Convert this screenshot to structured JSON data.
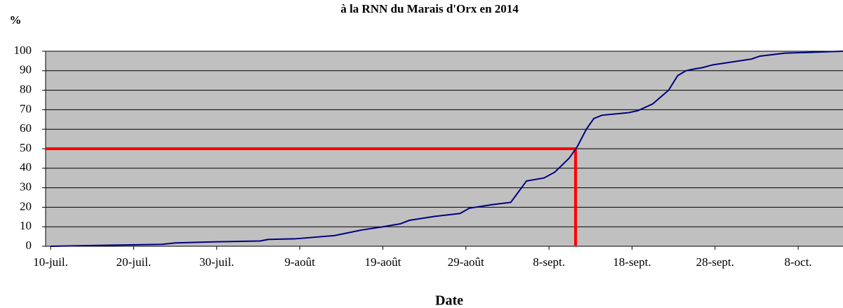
{
  "chart_data": {
    "type": "line",
    "title": "à la RNN du Marais d'Orx en 2014",
    "ylabel": "%",
    "xlabel": "Date",
    "x": [
      0,
      13.4,
      15,
      20,
      25.2,
      26.2,
      29.4,
      34.2,
      37.4,
      40,
      42.1,
      43.2,
      46.2,
      49.3,
      50.4,
      53.1,
      55.4,
      57.3,
      59.4,
      60.7,
      62.4,
      63.4,
      64.5,
      65.4,
      66.4,
      69.6,
      70.7,
      72.5,
      74.4,
      75.5,
      76.5,
      77.6,
      78.4,
      79.7,
      84.4,
      85.4,
      88.4,
      95.4
    ],
    "series": [
      {
        "name": "%",
        "color": "#000080",
        "values": [
          0,
          1,
          1.7,
          2.3,
          2.7,
          3.5,
          3.8,
          5.5,
          8.3,
          10,
          11.5,
          13.3,
          15.3,
          16.8,
          19.5,
          21.3,
          22.5,
          33.5,
          35,
          38,
          45,
          51,
          60,
          65.5,
          67.2,
          68.5,
          69.5,
          73,
          80,
          87.5,
          90,
          91,
          91.5,
          93,
          96,
          97.5,
          99,
          100
        ]
      }
    ],
    "xlim": [
      -0.6,
      95.4
    ],
    "xticks": [
      {
        "value": 0,
        "label": "10-juil."
      },
      {
        "value": 10,
        "label": "20-juil."
      },
      {
        "value": 20,
        "label": "30-juil."
      },
      {
        "value": 30,
        "label": "9-août"
      },
      {
        "value": 40,
        "label": "19-août"
      },
      {
        "value": 50,
        "label": "29-août"
      },
      {
        "value": 60,
        "label": "8-sept."
      },
      {
        "value": 70,
        "label": "18-sept."
      },
      {
        "value": 80,
        "label": "28-sept."
      },
      {
        "value": 90,
        "label": "8-oct."
      }
    ],
    "ylim": [
      0,
      100
    ],
    "yticks": [
      0,
      10,
      20,
      30,
      40,
      50,
      60,
      70,
      80,
      90,
      100
    ],
    "grid": true,
    "reference": {
      "x": 63.2,
      "y": 50,
      "color": "#ff0000"
    }
  }
}
